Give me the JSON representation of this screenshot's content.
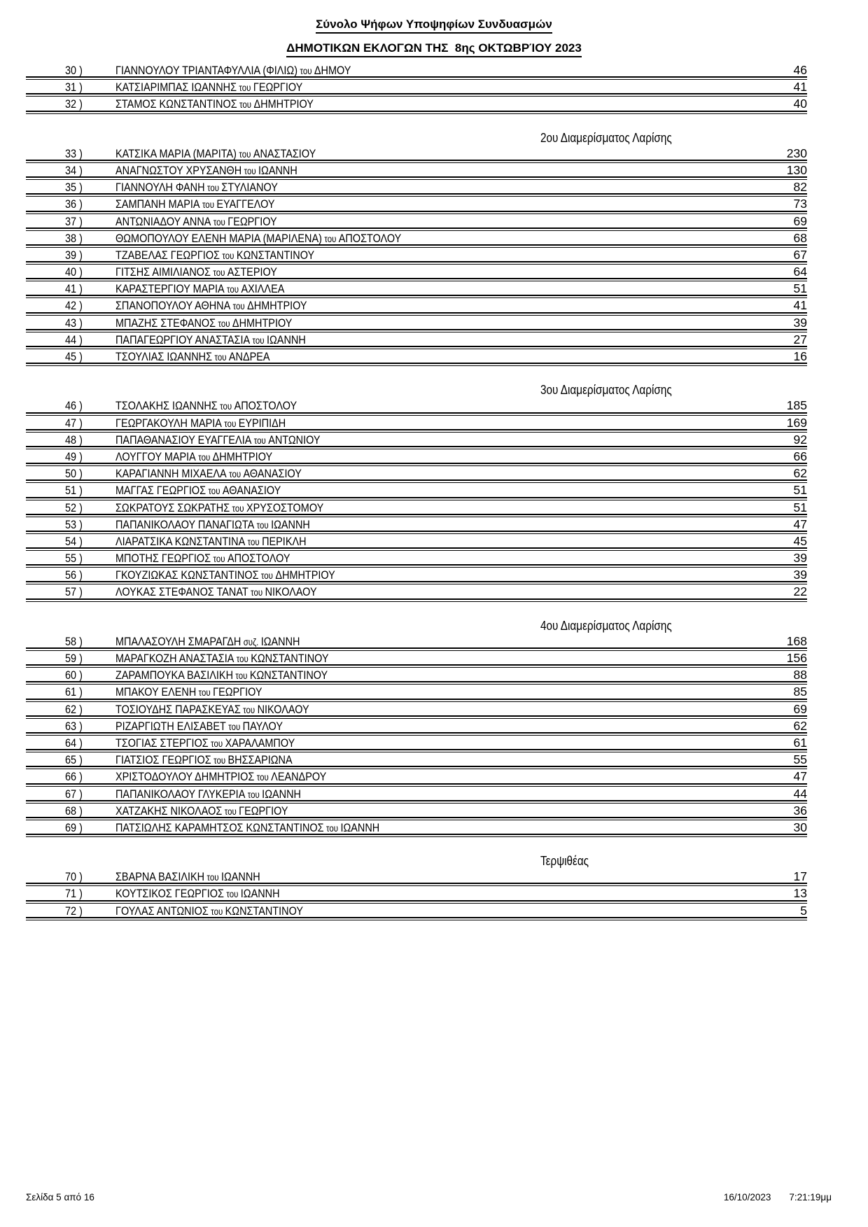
{
  "page": {
    "title": "Σύνολο Ψήφων Υποψηφίων Συνδυασμών",
    "subtitle": "ΔΗΜΟΤΙΚΩΝ ΕΚΛΟΓΩΝ ΤΗΣ  8ης ΟΚΤΩΒΡΊΟΥ 2023"
  },
  "table": {
    "sections": [
      {
        "heading": "",
        "rows": [
          {
            "num": "30 )",
            "name": "ΓΙΑΝΝΟΥΛΟΥ ΤΡΙΑΝΤΑΦΥΛΛΙΑ (ΦΙΛΙΩ)",
            "link": "του",
            "father": "ΔΗΜΟΥ",
            "votes": "46"
          },
          {
            "num": "31 )",
            "name": "ΚΑΤΣΙΑΡΙΜΠΑΣ ΙΩΑΝΝΗΣ",
            "link": "του",
            "father": "ΓΕΩΡΓΙΟΥ",
            "votes": "41"
          },
          {
            "num": "32 )",
            "name": "ΣΤΑΜΟΣ ΚΩΝΣΤΑΝΤΙΝΟΣ",
            "link": "του",
            "father": "ΔΗΜΗΤΡΙΟΥ",
            "votes": "40"
          }
        ]
      },
      {
        "heading": "2ου Διαμερίσματος Λαρίσης",
        "rows": [
          {
            "num": "33 )",
            "name": "ΚΑΤΣΙΚΑ ΜΑΡΙΑ (ΜΑΡΙΤΑ)",
            "link": "του",
            "father": "ΑΝΑΣΤΑΣΙΟΥ",
            "votes": "230"
          },
          {
            "num": "34 )",
            "name": "ΑΝΑΓΝΩΣΤΟΥ ΧΡΥΣΑΝΘΗ",
            "link": "του",
            "father": "ΙΩΑΝΝΗ",
            "votes": "130"
          },
          {
            "num": "35 )",
            "name": "ΓΙΑΝΝΟΥΛΗ ΦΑΝΗ",
            "link": "του",
            "father": "ΣΤΥΛΙΑΝΟΥ",
            "votes": "82"
          },
          {
            "num": "36 )",
            "name": "ΣΑΜΠΑΝΗ ΜΑΡΙΑ",
            "link": "του",
            "father": "ΕΥΑΓΓΕΛΟΥ",
            "votes": "73"
          },
          {
            "num": "37 )",
            "name": "ΑΝΤΩΝΙΑΔΟΥ ΑΝΝΑ",
            "link": "του",
            "father": "ΓΕΩΡΓΙΟΥ",
            "votes": "69"
          },
          {
            "num": "38 )",
            "name": "ΘΩΜΟΠΟΥΛΟΥ ΕΛΕΝΗ ΜΑΡΙΑ (ΜΑΡΙΛΕΝΑ)",
            "link": "του",
            "father": "ΑΠΟΣΤΟΛΟΥ",
            "votes": "68"
          },
          {
            "num": "39 )",
            "name": "ΤΖΑΒΕΛΑΣ ΓΕΩΡΓΙΟΣ",
            "link": "του",
            "father": "ΚΩΝΣΤΑΝΤΙΝΟΥ",
            "votes": "67"
          },
          {
            "num": "40 )",
            "name": "ΓΙΤΣΗΣ ΑΙΜΙΛΙΑΝΟΣ",
            "link": "του",
            "father": "ΑΣΤΕΡΙΟΥ",
            "votes": "64"
          },
          {
            "num": "41 )",
            "name": "ΚΑΡΑΣΤΕΡΓΙΟΥ ΜΑΡΙΑ",
            "link": "του",
            "father": "ΑΧΙΛΛΕΑ",
            "votes": "51"
          },
          {
            "num": "42 )",
            "name": "ΣΠΑΝΟΠΟΥΛΟΥ ΑΘΗΝΑ",
            "link": "του",
            "father": "ΔΗΜΗΤΡΙΟΥ",
            "votes": "41"
          },
          {
            "num": "43 )",
            "name": "ΜΠΑΖΗΣ ΣΤΕΦΑΝΟΣ",
            "link": "του",
            "father": "ΔΗΜΗΤΡΙΟΥ",
            "votes": "39"
          },
          {
            "num": "44 )",
            "name": "ΠΑΠΑΓΕΩΡΓΙΟΥ ΑΝΑΣΤΑΣΙΑ",
            "link": "του",
            "father": "ΙΩΑΝΝΗ",
            "votes": "27"
          },
          {
            "num": "45 )",
            "name": "ΤΣΟΥΛΙΑΣ ΙΩΑΝΝΗΣ",
            "link": "του",
            "father": "ΑΝΔΡΕΑ",
            "votes": "16"
          }
        ]
      },
      {
        "heading": "3ου Διαμερίσματος Λαρίσης",
        "rows": [
          {
            "num": "46 )",
            "name": "ΤΣΟΛΑΚΗΣ ΙΩΑΝΝΗΣ",
            "link": "του",
            "father": "ΑΠΟΣΤΟΛΟΥ",
            "votes": "185"
          },
          {
            "num": "47 )",
            "name": "ΓΕΩΡΓΑΚΟΥΛΗ ΜΑΡΙΑ",
            "link": "του",
            "father": "ΕΥΡΙΠΙΔΗ",
            "votes": "169"
          },
          {
            "num": "48 )",
            "name": "ΠΑΠΑΘΑΝΑΣΙΟΥ ΕΥΑΓΓΕΛΙΑ",
            "link": "του",
            "father": "ΑΝΤΩΝΙΟΥ",
            "votes": "92"
          },
          {
            "num": "49 )",
            "name": "ΛΟΥΓΓΟΥ ΜΑΡΙΑ",
            "link": "του",
            "father": "ΔΗΜΗΤΡΙΟΥ",
            "votes": "66"
          },
          {
            "num": "50 )",
            "name": "ΚΑΡΑΓΙΑΝΝΗ ΜΙΧΑΕΛΑ",
            "link": "του",
            "father": "ΑΘΑΝΑΣΙΟΥ",
            "votes": "62"
          },
          {
            "num": "51 )",
            "name": "ΜΑΓΓΑΣ ΓΕΩΡΓΙΟΣ",
            "link": "του",
            "father": "ΑΘΑΝΑΣΙΟΥ",
            "votes": "51"
          },
          {
            "num": "52 )",
            "name": "ΣΩΚΡΑΤΟΥΣ ΣΩΚΡΑΤΗΣ",
            "link": "του",
            "father": "ΧΡΥΣΟΣΤΟΜΟΥ",
            "votes": "51"
          },
          {
            "num": "53 )",
            "name": "ΠΑΠΑΝΙΚΟΛΑΟΥ ΠΑΝΑΓΙΩΤΑ",
            "link": "του",
            "father": "ΙΩΑΝΝΗ",
            "votes": "47"
          },
          {
            "num": "54 )",
            "name": "ΛΙΑΡΑΤΣΙΚΑ ΚΩΝΣΤΑΝΤΙΝΑ",
            "link": "του",
            "father": "ΠΕΡΙΚΛΗ",
            "votes": "45"
          },
          {
            "num": "55 )",
            "name": "ΜΠΟΤΗΣ ΓΕΩΡΓΙΟΣ",
            "link": "του",
            "father": "ΑΠΟΣΤΟΛΟΥ",
            "votes": "39"
          },
          {
            "num": "56 )",
            "name": "ΓΚΟΥΖΙΩΚΑΣ ΚΩΝΣΤΑΝΤΙΝΟΣ",
            "link": "του",
            "father": "ΔΗΜΗΤΡΙΟΥ",
            "votes": "39"
          },
          {
            "num": "57 )",
            "name": "ΛΟΥΚΑΣ ΣΤΕΦΑΝΟΣ ΤΑΝΑΤ",
            "link": "του",
            "father": "ΝΙΚΟΛΑΟΥ",
            "votes": "22"
          }
        ]
      },
      {
        "heading": "4ου Διαμερίσματος Λαρίσης",
        "rows": [
          {
            "num": "58 )",
            "name": "ΜΠΑΛΑΣΟΥΛΗ ΣΜΑΡΑΓΔΗ",
            "link": "συζ.",
            "father": "ΙΩΑΝΝΗ",
            "votes": "168"
          },
          {
            "num": "59 )",
            "name": "ΜΑΡΑΓΚΟΖΗ ΑΝΑΣΤΑΣΙΑ",
            "link": "του",
            "father": "ΚΩΝΣΤΑΝΤΙΝΟΥ",
            "votes": "156"
          },
          {
            "num": "60 )",
            "name": "ΖΑΡΑΜΠΟΥΚΑ ΒΑΣΙΛΙΚΗ",
            "link": "του",
            "father": "ΚΩΝΣΤΑΝΤΙΝΟΥ",
            "votes": "88"
          },
          {
            "num": "61 )",
            "name": "ΜΠΑΚΟΥ ΕΛΕΝΗ",
            "link": "του",
            "father": "ΓΕΩΡΓΙΟΥ",
            "votes": "85"
          },
          {
            "num": "62 )",
            "name": "ΤΟΣΙΟΥΔΗΣ ΠΑΡΑΣΚΕΥΑΣ",
            "link": "του",
            "father": "ΝΙΚΟΛΑΟΥ",
            "votes": "69"
          },
          {
            "num": "63 )",
            "name": "ΡΙΖΑΡΓΙΩΤΗ ΕΛΙΣΑΒΕΤ",
            "link": "του",
            "father": "ΠΑΥΛΟΥ",
            "votes": "62"
          },
          {
            "num": "64 )",
            "name": "ΤΣΟΓΙΑΣ ΣΤΕΡΓΙΟΣ",
            "link": "του",
            "father": "ΧΑΡΑΛΑΜΠΟΥ",
            "votes": "61"
          },
          {
            "num": "65 )",
            "name": "ΓΙΑΤΣΙΟΣ ΓΕΩΡΓΙΟΣ",
            "link": "του",
            "father": "ΒΗΣΣΑΡΙΩΝΑ",
            "votes": "55"
          },
          {
            "num": "66 )",
            "name": "ΧΡΙΣΤΟΔΟΥΛΟΥ ΔΗΜΗΤΡΙΟΣ",
            "link": "του",
            "father": "ΛΕΑΝΔΡΟΥ",
            "votes": "47"
          },
          {
            "num": "67 )",
            "name": "ΠΑΠΑΝΙΚΟΛΑΟΥ ΓΛΥΚΕΡΙΑ",
            "link": "του",
            "father": "ΙΩΑΝΝΗ",
            "votes": "44"
          },
          {
            "num": "68 )",
            "name": "ΧΑΤΖΑΚΗΣ ΝΙΚΟΛΑΟΣ",
            "link": "του",
            "father": "ΓΕΩΡΓΙΟΥ",
            "votes": "36"
          },
          {
            "num": "69 )",
            "name": "ΠΑΤΣΙΩΛΗΣ ΚΑΡΑΜΗΤΣΟΣ ΚΩΝΣΤΑΝΤΙΝΟΣ",
            "link": "του",
            "father": "ΙΩΑΝΝΗ",
            "votes": "30"
          }
        ]
      },
      {
        "heading": "Τερψιθέας",
        "rows": [
          {
            "num": "70 )",
            "name": "ΣΒΑΡΝΑ ΒΑΣΙΛΙΚΗ",
            "link": "του",
            "father": "ΙΩΑΝΝΗ",
            "votes": "17"
          },
          {
            "num": "71 )",
            "name": "ΚΟΥΤΣΙΚΟΣ ΓΕΩΡΓΙΟΣ",
            "link": "του",
            "father": "ΙΩΑΝΝΗ",
            "votes": "13"
          },
          {
            "num": "72 )",
            "name": "ΓΟΥΛΑΣ ΑΝΤΩΝΙΟΣ",
            "link": "του",
            "father": "ΚΩΝΣΤΑΝΤΙΝΟΥ",
            "votes": "5"
          }
        ]
      }
    ]
  },
  "footer": {
    "page_info": "Σελίδα 5 από 16",
    "date": "16/10/2023",
    "time": "7:21:19μμ"
  }
}
